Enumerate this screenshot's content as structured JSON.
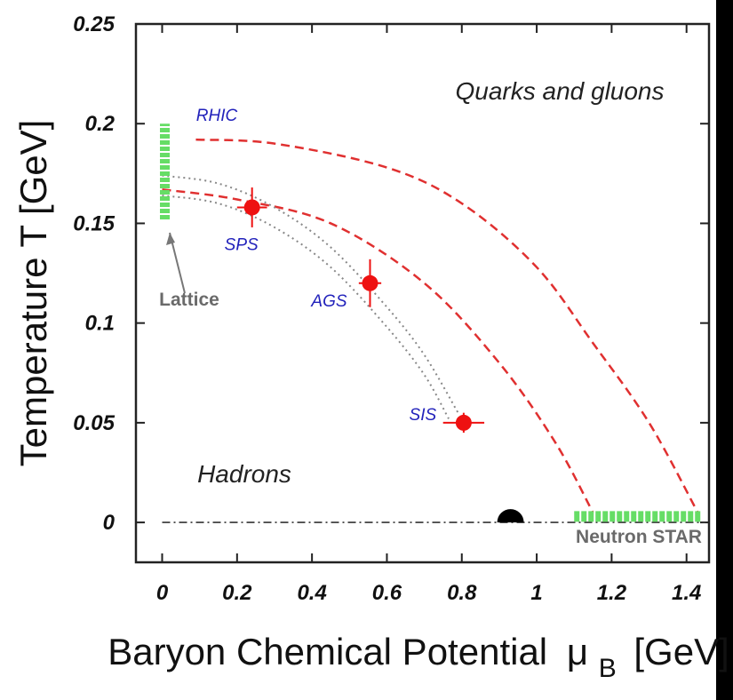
{
  "chart_data": {
    "type": "scatter",
    "xlabel": "Baryon Chemical Potential",
    "xlabel_symbol": "μ",
    "xlabel_subscript": "B",
    "xlabel_unit": "[GeV]",
    "ylabel": "Temperature T [GeV]",
    "xlim": [
      -0.07,
      1.46
    ],
    "ylim": [
      -0.02,
      0.25
    ],
    "x_ticks": [
      "0",
      "0.2",
      "0.4",
      "0.6",
      "0.8",
      "1",
      "1.2",
      "1.4"
    ],
    "y_ticks": [
      "0",
      "0.05",
      "0.1",
      "0.15",
      "0.2",
      "0.25"
    ],
    "x_tick_values": [
      0,
      0.2,
      0.4,
      0.6,
      0.8,
      1.0,
      1.2,
      1.4
    ],
    "y_tick_values": [
      0,
      0.05,
      0.1,
      0.15,
      0.2,
      0.25
    ],
    "grid": false,
    "colors": {
      "points": "#ee1111",
      "boundary": "#e03030",
      "freezeout": "#888888",
      "lattice": "#66dd66",
      "labels": "#2222bb"
    },
    "region_labels": {
      "qgp": "Quarks and gluons",
      "hadrons": "Hadrons"
    },
    "points": [
      {
        "name": "SPS",
        "x": 0.24,
        "y": 0.158,
        "xerr": 0.04,
        "yerr": 0.01
      },
      {
        "name": "AGS",
        "x": 0.555,
        "y": 0.12,
        "xerr": 0.03,
        "yerr": 0.012
      },
      {
        "name": "SIS",
        "x": 0.805,
        "y": 0.05,
        "xerr": 0.055,
        "yerr": 0.005
      }
    ],
    "rhic_label": "RHIC",
    "lattice": {
      "label": "Lattice",
      "x": 0.0,
      "y_range": [
        0.152,
        0.2
      ]
    },
    "neutron_star": {
      "label": "Neutron STAR",
      "x_range": [
        1.1,
        1.44
      ],
      "y": 0.003
    },
    "nucleus_marker": {
      "x": 0.93,
      "y": 0.0
    },
    "boundaries": [
      {
        "style": "red-dashed",
        "points": [
          [
            0.09,
            0.192
          ],
          [
            0.3,
            0.19
          ],
          [
            0.6,
            0.178
          ],
          [
            0.8,
            0.16
          ],
          [
            1.0,
            0.128
          ],
          [
            1.15,
            0.09
          ],
          [
            1.3,
            0.05
          ],
          [
            1.43,
            0.005
          ]
        ]
      },
      {
        "style": "red-dashed",
        "points": [
          [
            0.0,
            0.167
          ],
          [
            0.2,
            0.162
          ],
          [
            0.45,
            0.15
          ],
          [
            0.7,
            0.12
          ],
          [
            0.9,
            0.08
          ],
          [
            1.05,
            0.04
          ],
          [
            1.15,
            0.005
          ]
        ]
      },
      {
        "style": "grey-dotted",
        "points": [
          [
            0.0,
            0.174
          ],
          [
            0.15,
            0.17
          ],
          [
            0.3,
            0.158
          ],
          [
            0.45,
            0.138
          ],
          [
            0.6,
            0.108
          ],
          [
            0.7,
            0.084
          ],
          [
            0.79,
            0.055
          ]
        ]
      },
      {
        "style": "grey-dotted",
        "points": [
          [
            0.0,
            0.164
          ],
          [
            0.15,
            0.16
          ],
          [
            0.3,
            0.148
          ],
          [
            0.45,
            0.128
          ],
          [
            0.6,
            0.098
          ],
          [
            0.7,
            0.074
          ],
          [
            0.765,
            0.052
          ]
        ]
      },
      {
        "style": "dash-dot-baseline",
        "points": [
          [
            0.0,
            0.0
          ],
          [
            1.45,
            0.0
          ]
        ]
      }
    ]
  }
}
